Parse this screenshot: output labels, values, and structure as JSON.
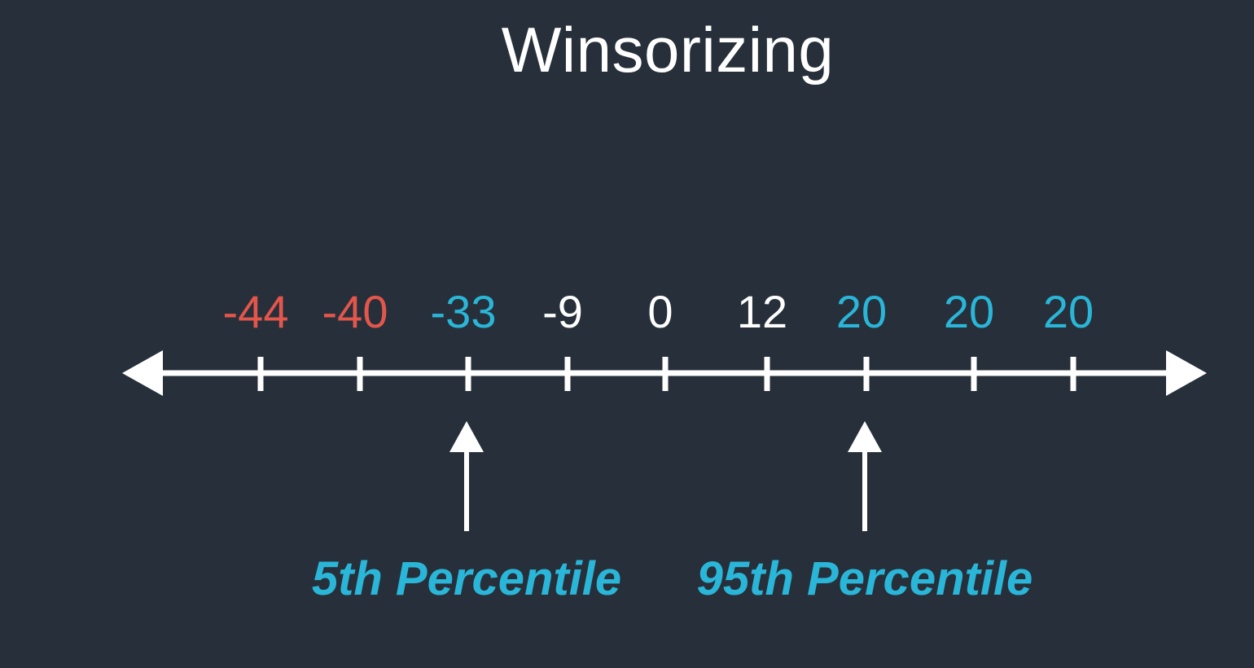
{
  "title": "Winsorizing",
  "colors": {
    "background": "#27303a",
    "line": "#ffffff",
    "outlier": "#e4564b",
    "winsorized": "#2ab6d8",
    "normal": "#ffffff"
  },
  "number_line": {
    "values": [
      {
        "label": "-44",
        "status": "outlier"
      },
      {
        "label": "-40",
        "status": "outlier"
      },
      {
        "label": "-33",
        "status": "winsorized"
      },
      {
        "label": "-9",
        "status": "normal"
      },
      {
        "label": "0",
        "status": "normal"
      },
      {
        "label": "12",
        "status": "normal"
      },
      {
        "label": "20",
        "status": "winsorized"
      },
      {
        "label": "20",
        "status": "winsorized"
      },
      {
        "label": "20",
        "status": "winsorized"
      }
    ]
  },
  "markers": [
    {
      "label": "5th Percentile",
      "points_to_index": 2
    },
    {
      "label": "95th Percentile",
      "points_to_index": 6
    }
  ]
}
